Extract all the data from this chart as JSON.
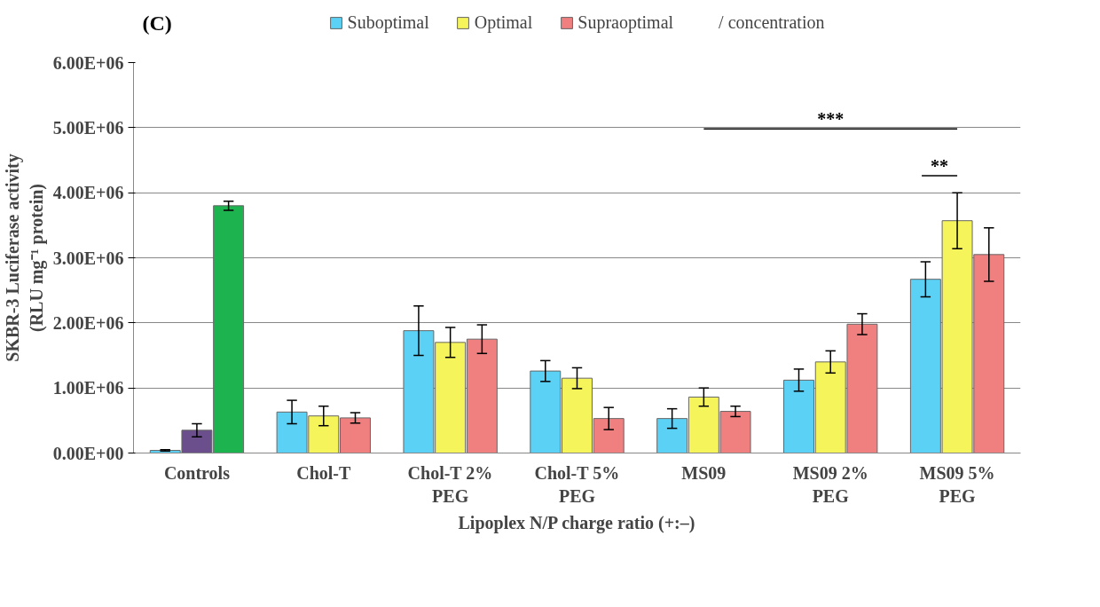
{
  "chart_data": {
    "type": "bar",
    "title": "(C)",
    "xlabel": "Lipoplex N/P charge ratio (+:–)",
    "ylabel": "SKBR-3 Luciferase activity\n(RLU mg⁻¹ protein)",
    "categories": [
      "Controls",
      "Chol-T",
      "Chol-T 2% PEG",
      "Chol-T 5% PEG",
      "MS09",
      "MS09 2% PEG",
      "MS09 5% PEG"
    ],
    "series": [
      {
        "name": "Suboptimal",
        "color": "#5bd2f5",
        "colors": [
          "#5bd2f5",
          "#5bd2f5",
          "#5bd2f5",
          "#5bd2f5",
          "#5bd2f5",
          "#5bd2f5",
          "#5bd2f5"
        ],
        "values": [
          40000,
          630000,
          1880000,
          1260000,
          530000,
          1120000,
          2670000
        ],
        "errors": [
          10000,
          180000,
          380000,
          160000,
          150000,
          170000,
          270000
        ]
      },
      {
        "name": "Optimal",
        "color": "#f5f55b",
        "colors": [
          "#6a4f8c",
          "#f5f55b",
          "#f5f55b",
          "#f5f55b",
          "#f5f55b",
          "#f5f55b",
          "#f5f55b"
        ],
        "values": [
          350000,
          570000,
          1700000,
          1150000,
          860000,
          1400000,
          3570000
        ],
        "errors": [
          100000,
          150000,
          230000,
          160000,
          140000,
          170000,
          430000
        ]
      },
      {
        "name": "Supraoptimal",
        "color": "#f07f80",
        "colors": [
          "#1db34f",
          "#f07f80",
          "#f07f80",
          "#f07f80",
          "#f07f80",
          "#f07f80",
          "#f07f80"
        ],
        "values": [
          3800000,
          540000,
          1750000,
          530000,
          640000,
          1980000,
          3050000
        ],
        "errors": [
          70000,
          80000,
          220000,
          170000,
          80000,
          160000,
          410000
        ]
      }
    ],
    "ylim": [
      0,
      6000000
    ],
    "yticks": [
      {
        "value": 0,
        "label": "0.00E+00"
      },
      {
        "value": 1000000,
        "label": "1.00E+06"
      },
      {
        "value": 2000000,
        "label": "2.00E+06"
      },
      {
        "value": 3000000,
        "label": "3.00E+06"
      },
      {
        "value": 4000000,
        "label": "4.00E+06"
      },
      {
        "value": 5000000,
        "label": "5.00E+06"
      },
      {
        "value": 6000000,
        "label": "6.00E+06"
      }
    ],
    "grid": "y",
    "legend": "top",
    "legend_title": "/ concentration",
    "annotations": [
      "***",
      "**"
    ]
  }
}
